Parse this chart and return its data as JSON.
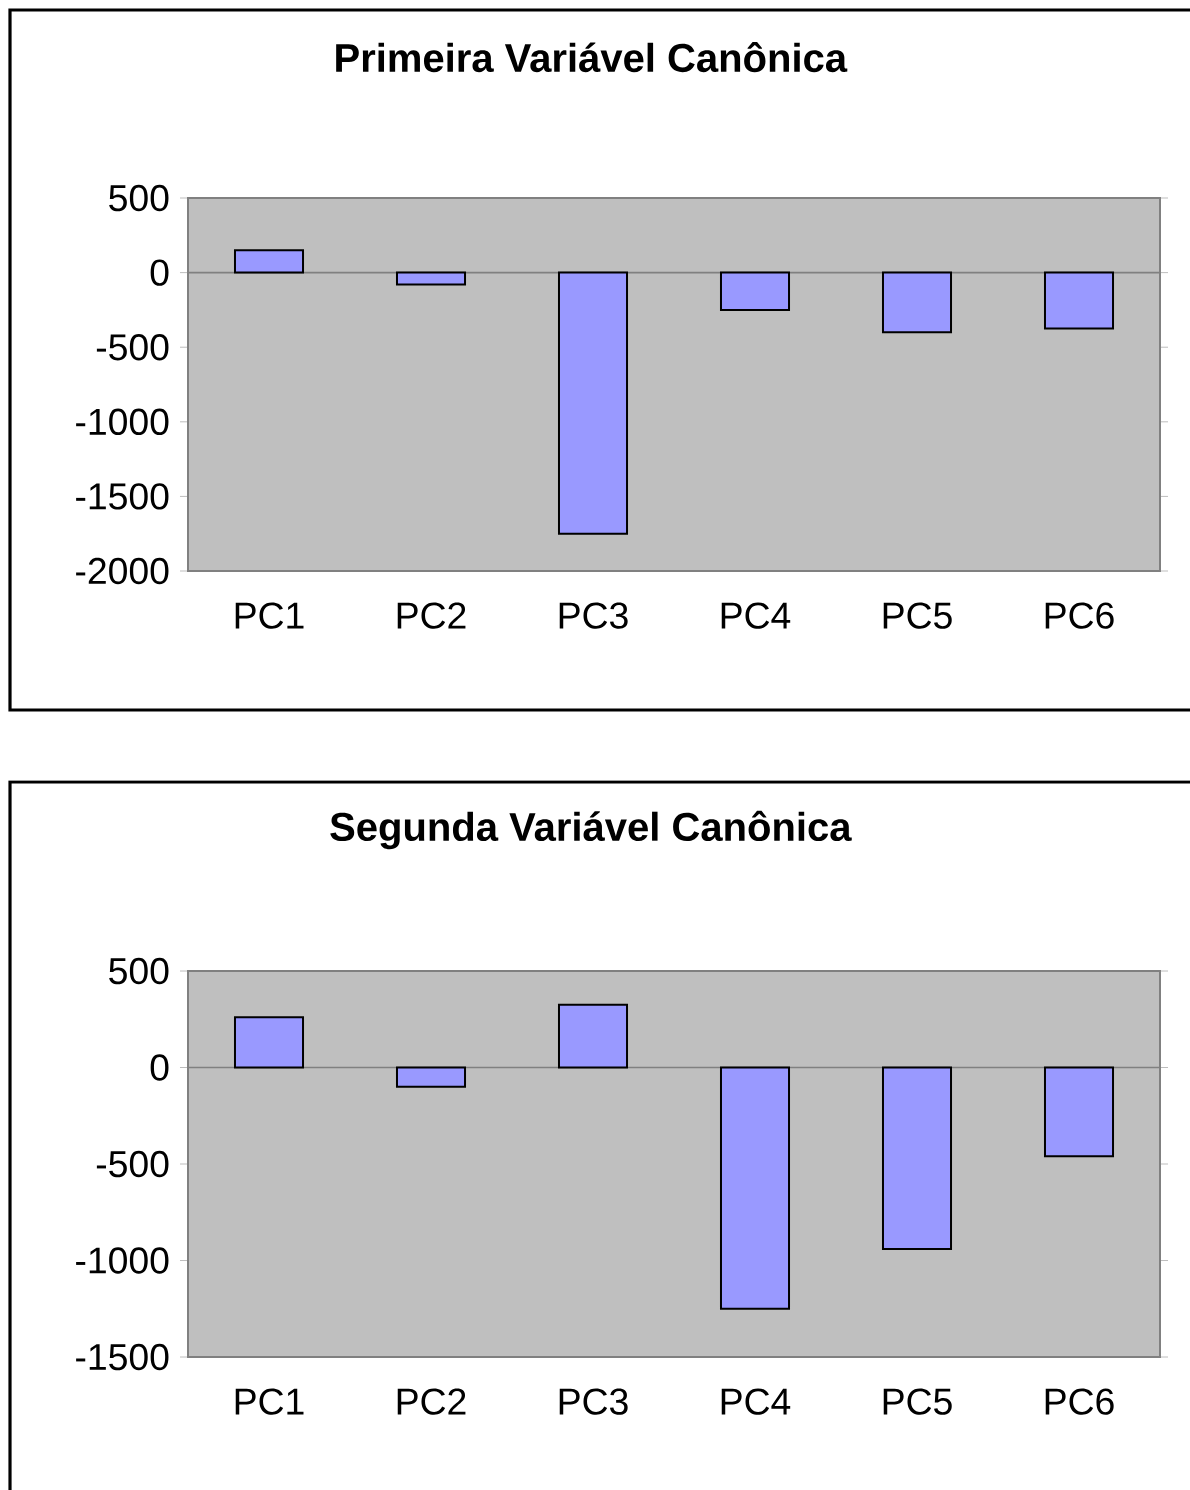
{
  "chart_data": [
    {
      "type": "bar",
      "title": "Primeira Variável Canônica",
      "categories": [
        "PC1",
        "PC2",
        "PC3",
        "PC4",
        "PC5",
        "PC6"
      ],
      "values": [
        150,
        -80,
        -1750,
        -250,
        -400,
        -375
      ],
      "color": "#9999ff",
      "ylim": [
        -2000,
        500
      ],
      "yticks": [
        -2000,
        -1500,
        -1000,
        -500,
        0,
        500
      ]
    },
    {
      "type": "bar",
      "title": "Segunda Variável Canônica",
      "categories": [
        "PC1",
        "PC2",
        "PC3",
        "PC4",
        "PC5",
        "PC6"
      ],
      "values": [
        260,
        -100,
        325,
        -1250,
        -940,
        -460
      ],
      "color": "#9999ff",
      "ylim": [
        -1500,
        500
      ],
      "yticks": [
        -1500,
        -1000,
        -500,
        0,
        500
      ]
    }
  ]
}
